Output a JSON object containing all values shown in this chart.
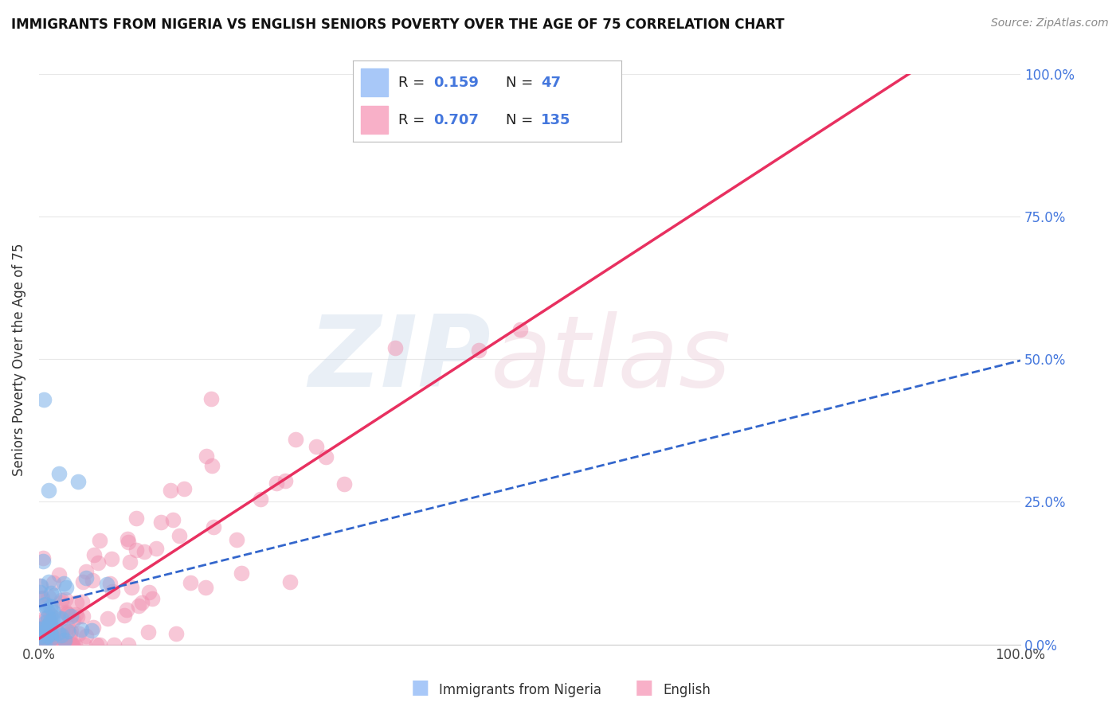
{
  "title": "IMMIGRANTS FROM NIGERIA VS ENGLISH SENIORS POVERTY OVER THE AGE OF 75 CORRELATION CHART",
  "source": "Source: ZipAtlas.com",
  "ylabel": "Seniors Poverty Over the Age of 75",
  "right_ytick_values": [
    0.0,
    0.25,
    0.5,
    0.75,
    1.0
  ],
  "right_ytick_labels": [
    "0.0%",
    "25.0%",
    "50.0%",
    "75.0%",
    "100.0%"
  ],
  "xtick_values": [
    0.0,
    0.25,
    0.5,
    0.75,
    1.0
  ],
  "xtick_labels": [
    "0.0%",
    "",
    "",
    "",
    "100.0%"
  ],
  "nigeria_R": 0.159,
  "nigeria_N": 47,
  "english_R": 0.707,
  "english_N": 135,
  "watermark_zip": "ZIP",
  "watermark_atlas": "atlas",
  "background_color": "#ffffff",
  "grid_color": "#e8e8e8",
  "nigeria_dot_color": "#7ab0e8",
  "english_dot_color": "#f090b0",
  "nigeria_line_color": "#3366cc",
  "english_line_color": "#e83060",
  "nigeria_legend_color": "#a8c8f8",
  "english_legend_color": "#f8b0c8",
  "legend_label1": "R =  0.159   N =  47",
  "legend_label2": "R =  0.707   N =  135",
  "bottom_legend_nigeria": "Immigrants from Nigeria",
  "bottom_legend_english": "English",
  "value_color": "#4477dd",
  "text_color": "#222222",
  "source_color": "#888888"
}
